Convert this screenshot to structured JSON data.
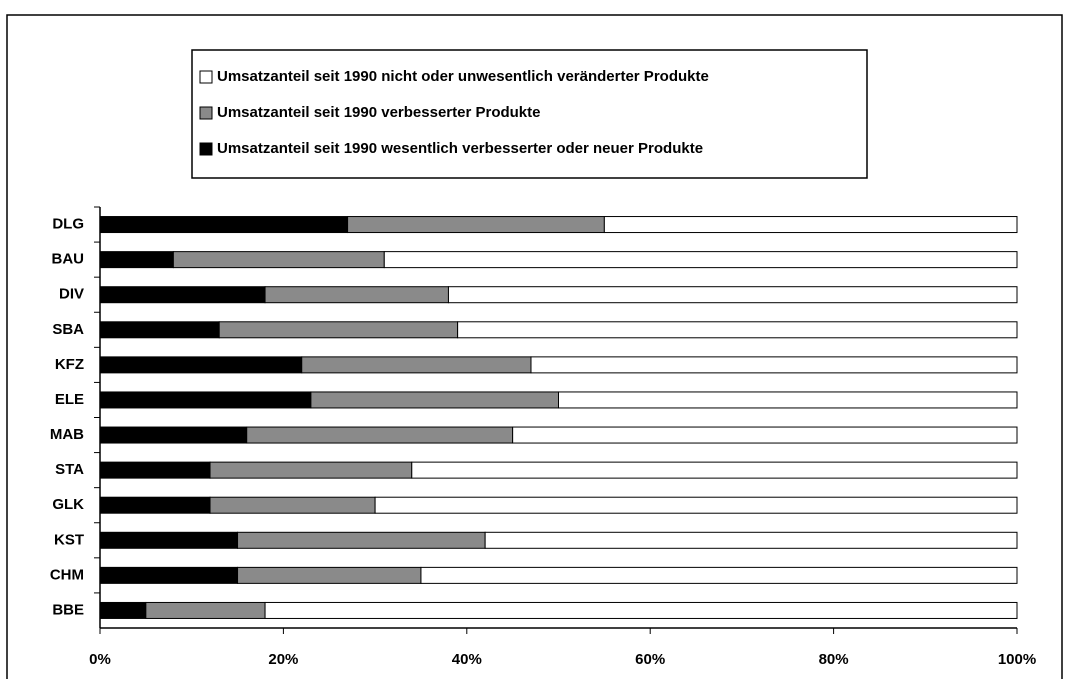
{
  "chart_data": {
    "type": "stacked-barh",
    "categories": [
      "DLG",
      "BAU",
      "DIV",
      "SBA",
      "KFZ",
      "ELE",
      "MAB",
      "STA",
      "GLK",
      "KST",
      "CHM",
      "BBE"
    ],
    "series": [
      {
        "name": "Umsatzanteil seit 1990 nicht oder unwesentlich veränderter Produkte",
        "color": "#ffffff",
        "values": [
          45,
          69,
          62,
          61,
          53,
          50,
          55,
          66,
          70,
          58,
          65,
          82
        ]
      },
      {
        "name": "Umsatzanteil seit 1990 verbesserter Produkte",
        "color": "#8a8a8a",
        "values": [
          28,
          23,
          20,
          26,
          25,
          27,
          29,
          22,
          18,
          27,
          20,
          13
        ]
      },
      {
        "name": "Umsatzanteil seit 1990 wesentlich verbesserter oder neuer Produkte",
        "color": "#000000",
        "values": [
          27,
          8,
          18,
          13,
          22,
          23,
          16,
          12,
          12,
          15,
          15,
          5
        ]
      }
    ],
    "xlim": [
      0,
      100
    ],
    "xticks": [
      {
        "value": 0,
        "label": "0%"
      },
      {
        "value": 20,
        "label": "20%"
      },
      {
        "value": 40,
        "label": "40%"
      },
      {
        "value": 60,
        "label": "60%"
      },
      {
        "value": 80,
        "label": "80%"
      },
      {
        "value": 100,
        "label": "100%"
      }
    ],
    "legend": "top"
  }
}
